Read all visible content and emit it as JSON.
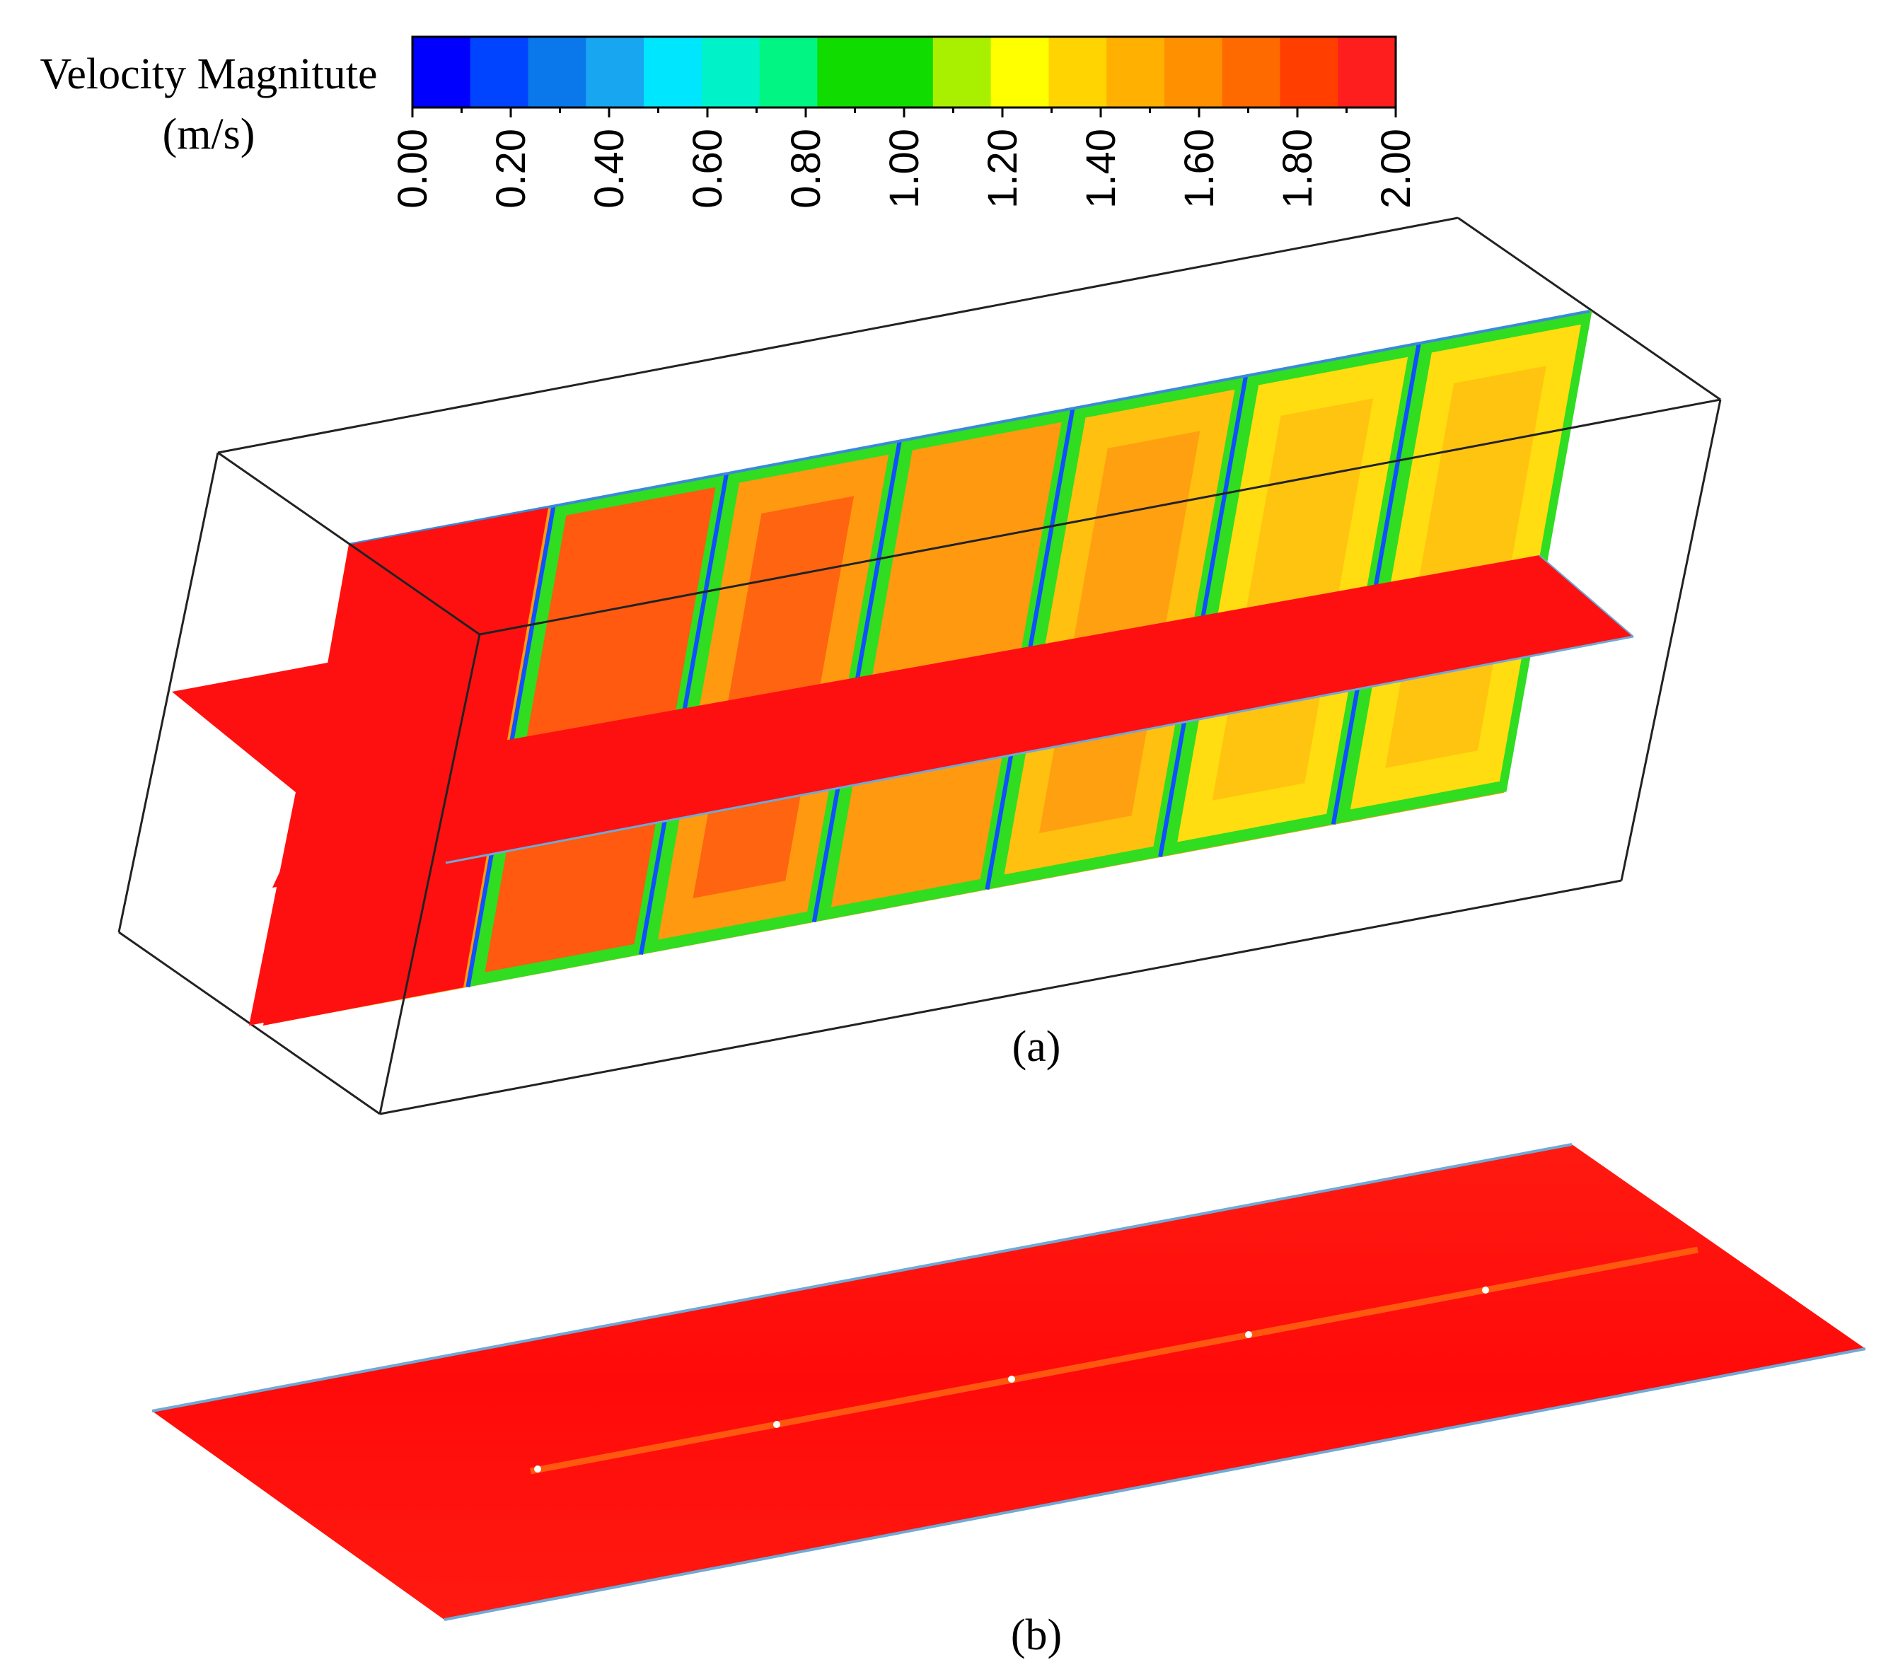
{
  "colorbar": {
    "title_line1": "Velocity Magnitute",
    "title_line2": "(m/s)",
    "min": 0.0,
    "max": 2.0,
    "tick_labels": [
      "0.00",
      "0.20",
      "0.40",
      "0.60",
      "0.80",
      "1.00",
      "1.20",
      "1.40",
      "1.60",
      "1.80",
      "2.00"
    ],
    "colors": [
      "#0000ff",
      "#0044ff",
      "#0a78ea",
      "#19a6f0",
      "#00e6ff",
      "#00f2c8",
      "#00f582",
      "#10dc00",
      "#10dc00",
      "#a9f000",
      "#ffff00",
      "#ffd400",
      "#ffb000",
      "#ff9000",
      "#ff6a00",
      "#ff3e00",
      "#ff1e1e"
    ]
  },
  "panel_a": {
    "caption": "(a)"
  },
  "panel_b": {
    "caption": "(b)"
  },
  "palette": {
    "red": "#ff1010",
    "orange_dark": "#ff5a10",
    "orange": "#ff9a10",
    "yellow_orange": "#ffc010",
    "yellow": "#ffdd10",
    "green": "#30dd20",
    "blue": "#1050ff"
  }
}
